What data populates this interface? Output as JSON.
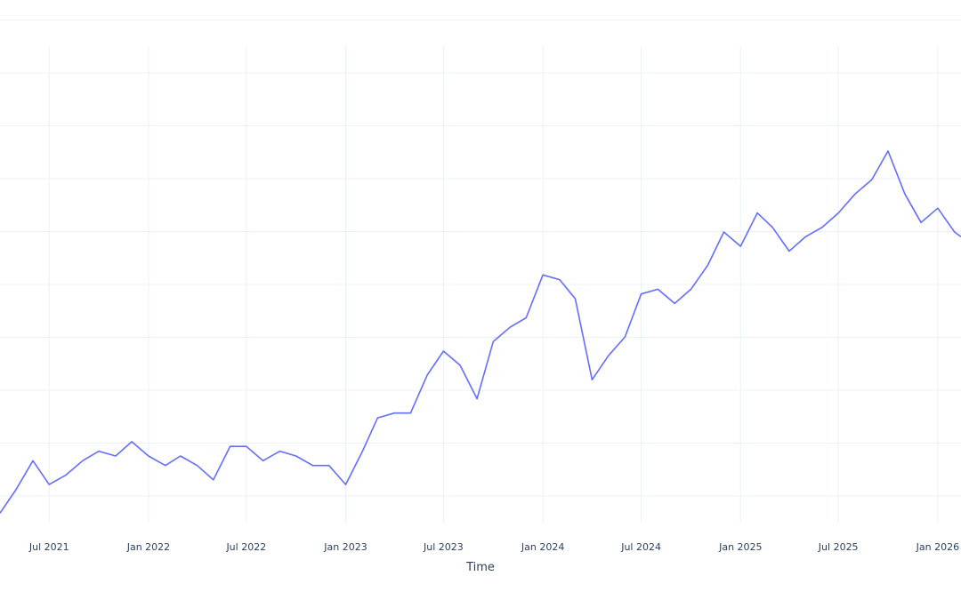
{
  "chart_data": {
    "type": "line",
    "title": "",
    "xlabel": "Time",
    "ylabel": "",
    "grid": true,
    "legend": "none",
    "x_ticks": [
      "Jul 2021",
      "Jan 2022",
      "Jul 2022",
      "Jan 2023",
      "Jul 2023",
      "Jan 2024",
      "Jul 2024",
      "Jan 2025",
      "Jul 2025",
      "Jan 2026"
    ],
    "xlim": [
      "2021-04-01",
      "2026-02-13"
    ],
    "ylim": [
      0,
      10
    ],
    "line_color": "#636efa",
    "series": [
      {
        "x": [
          "2021-04-01",
          "2021-05-01",
          "2021-06-01",
          "2021-07-01",
          "2021-08-01",
          "2021-09-01",
          "2021-10-01",
          "2021-11-01",
          "2021-12-01",
          "2022-01-01",
          "2022-02-01",
          "2022-03-01",
          "2022-04-01",
          "2022-05-01",
          "2022-06-01",
          "2022-07-01",
          "2022-08-01",
          "2022-09-01",
          "2022-10-01",
          "2022-11-01",
          "2022-12-01",
          "2023-01-01",
          "2023-02-01",
          "2023-03-01",
          "2023-04-01",
          "2023-05-01",
          "2023-06-01",
          "2023-07-01",
          "2023-08-01",
          "2023-09-01",
          "2023-10-01",
          "2023-11-01",
          "2023-12-01",
          "2024-01-01",
          "2024-02-01",
          "2024-03-01",
          "2024-04-01",
          "2024-05-01",
          "2024-06-01",
          "2024-07-01",
          "2024-08-01",
          "2024-09-01",
          "2024-10-01",
          "2024-11-01",
          "2024-12-01",
          "2025-01-01",
          "2025-02-01",
          "2025-03-01",
          "2025-04-01",
          "2025-05-01",
          "2025-06-01",
          "2025-07-01",
          "2025-08-01",
          "2025-09-01",
          "2025-10-01",
          "2025-11-01",
          "2025-12-01",
          "2026-01-01",
          "2026-02-01",
          "2026-02-13"
        ],
        "values": [
          0.2,
          0.7,
          1.3,
          0.8,
          1.0,
          1.3,
          1.5,
          1.4,
          1.7,
          1.4,
          1.2,
          1.4,
          1.2,
          0.9,
          1.6,
          1.6,
          1.3,
          1.5,
          1.4,
          1.2,
          1.2,
          0.8,
          1.5,
          2.2,
          2.3,
          2.3,
          3.1,
          3.6,
          3.3,
          2.6,
          3.8,
          4.1,
          4.3,
          5.2,
          5.1,
          4.7,
          3.0,
          3.5,
          3.9,
          4.8,
          4.9,
          4.6,
          4.9,
          5.4,
          6.1,
          5.8,
          6.5,
          6.2,
          5.7,
          6.0,
          6.2,
          6.5,
          6.9,
          7.2,
          7.8,
          6.9,
          6.3,
          6.6,
          6.1,
          6.0
        ]
      }
    ]
  }
}
